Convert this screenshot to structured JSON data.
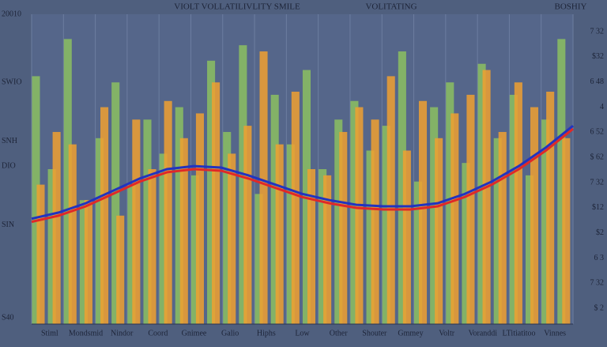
{
  "chart_data": {
    "type": "bar",
    "title": "VIOLT VOLLATILIVLITY SMILE",
    "subtitle": "VOLITATING",
    "corner_label": "BOSHIY",
    "left_labels": [
      "20010",
      "SWIO",
      "SNH",
      "DIO",
      "SIN",
      "S40"
    ],
    "right_labels": [
      "7 32",
      "$32",
      "6 48",
      "4",
      "6 52",
      "$ 62",
      "7 32",
      "$12",
      "$2",
      "6 3",
      "7 32",
      "$ 2"
    ],
    "bottom_labels": [
      "Stiml",
      "Mondsmid",
      "Nindor",
      "Coord",
      "Gnimee",
      "Galio",
      "Hiphs",
      "Low",
      "Other",
      "Shouter",
      "Gmmey",
      "Voltr",
      "Voranddi",
      "LTitiatitoo",
      "Vinnes"
    ],
    "ylim": [
      0,
      100
    ],
    "xlim": [
      0,
      100
    ],
    "grid": true,
    "series": [
      {
        "color": "#8cc060",
        "values": [
          80,
          50,
          92,
          40,
          60,
          78,
          45,
          66,
          55,
          70,
          48,
          85,
          62,
          90,
          42,
          74,
          58,
          82,
          50,
          66,
          72,
          56,
          64,
          88,
          46,
          70,
          78,
          52,
          84,
          60,
          74,
          48,
          66,
          92
        ]
      },
      {
        "color": "#f0a030",
        "values": [
          45,
          62,
          58,
          40,
          70,
          35,
          66,
          50,
          72,
          60,
          68,
          78,
          55,
          64,
          88,
          58,
          75,
          50,
          48,
          62,
          70,
          66,
          80,
          56,
          72,
          60,
          68,
          74,
          82,
          62,
          78,
          70,
          75,
          60
        ]
      }
    ],
    "lines": [
      {
        "color": "#2233c0",
        "x": [
          0,
          5,
          10,
          15,
          20,
          25,
          30,
          35,
          40,
          45,
          50,
          55,
          60,
          65,
          70,
          75,
          80,
          85,
          90,
          95,
          100
        ],
        "values": [
          34,
          36,
          39,
          43,
          47,
          50,
          51,
          50.5,
          48,
          45,
          42,
          40,
          38.5,
          38,
          38,
          39,
          42,
          46,
          51,
          57,
          64
        ]
      },
      {
        "color": "#e02828",
        "x": [
          0,
          5,
          10,
          15,
          20,
          25,
          30,
          35,
          40,
          45,
          50,
          55,
          60,
          65,
          70,
          75,
          80,
          85,
          90,
          95,
          100
        ],
        "values": [
          33,
          35,
          38,
          42,
          46,
          49,
          50,
          49.5,
          47,
          44,
          41,
          39,
          37.5,
          37,
          37,
          38,
          41,
          45,
          50,
          56,
          63
        ]
      }
    ]
  }
}
